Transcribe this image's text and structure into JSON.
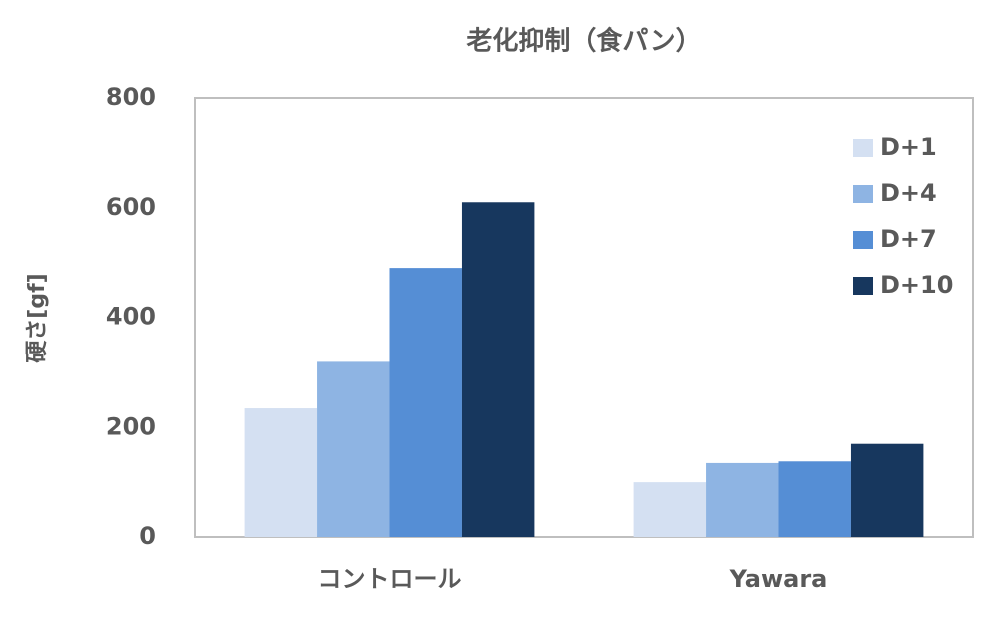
{
  "chart_data": {
    "type": "bar",
    "title": "老化抑制（食パン）",
    "y_label": "硬さ[gf]",
    "categories": [
      "コントロール",
      "Yawara"
    ],
    "series": [
      {
        "name": "D+1",
        "color": "#d4e0f2",
        "values": [
          235,
          100
        ]
      },
      {
        "name": "D+4",
        "color": "#8eb4e3",
        "values": [
          320,
          135
        ]
      },
      {
        "name": "D+7",
        "color": "#558ed5",
        "values": [
          490,
          138
        ]
      },
      {
        "name": "D+10",
        "color": "#17375e",
        "values": [
          610,
          170
        ]
      }
    ],
    "ylim": [
      0,
      800
    ],
    "yticks": [
      0,
      200,
      400,
      600,
      800
    ],
    "grid": false,
    "legend": "upper right"
  }
}
